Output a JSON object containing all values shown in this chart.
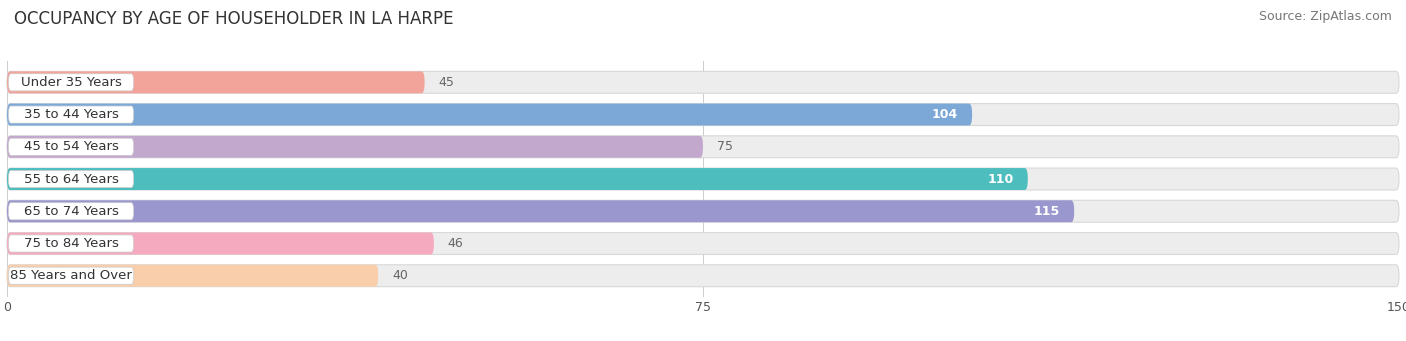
{
  "title": "OCCUPANCY BY AGE OF HOUSEHOLDER IN LA HARPE",
  "source": "Source: ZipAtlas.com",
  "categories": [
    "Under 35 Years",
    "35 to 44 Years",
    "45 to 54 Years",
    "55 to 64 Years",
    "65 to 74 Years",
    "75 to 84 Years",
    "85 Years and Over"
  ],
  "values": [
    45,
    104,
    75,
    110,
    115,
    46,
    40
  ],
  "bar_colors": [
    "#F2A49A",
    "#7CA8D8",
    "#C3A8CE",
    "#4DBDBD",
    "#9A97CF",
    "#F5AABF",
    "#F8CEAB"
  ],
  "bar_bg_color": "#EDEDED",
  "bar_bg_border": "#D8D8D8",
  "label_color_inside": "#FFFFFF",
  "label_color_outside": "#666666",
  "xlim": [
    0,
    150
  ],
  "xticks": [
    0,
    75,
    150
  ],
  "title_fontsize": 12,
  "source_fontsize": 9,
  "bar_label_fontsize": 9,
  "category_fontsize": 9.5,
  "bar_height": 0.68,
  "background_color": "#FFFFFF",
  "inside_label_threshold": 80,
  "grid_color": "#CCCCCC"
}
